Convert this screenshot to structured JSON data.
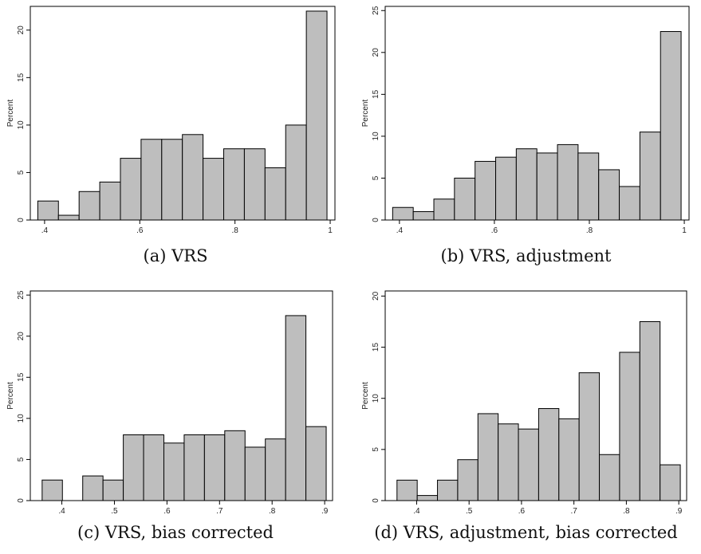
{
  "chart_data": [
    {
      "type": "bar",
      "title": "",
      "ylabel": "Percent",
      "caption": "(a) VRS",
      "xlim": [
        0.37,
        1.01
      ],
      "ylim": [
        0,
        22.5
      ],
      "xticks": [
        0.4,
        0.6,
        0.8,
        1
      ],
      "xtick_labels": [
        ".4",
        ".6",
        ".8",
        "1"
      ],
      "yticks": [
        0,
        5,
        10,
        15,
        20
      ],
      "bin_width": 0.0434,
      "bins": [
        0.3857,
        0.4291,
        0.4725,
        0.5159,
        0.5593,
        0.6027,
        0.6461,
        0.6895,
        0.7329,
        0.7763,
        0.8197,
        0.8631,
        0.9065,
        0.9499
      ],
      "values": [
        2,
        0.5,
        3,
        4,
        6.5,
        8.5,
        8.5,
        9,
        6.5,
        7.5,
        7.5,
        5.5,
        10,
        22
      ]
    },
    {
      "type": "bar",
      "title": "",
      "ylabel": "Percent",
      "caption": "(b) VRS, adjustment",
      "xlim": [
        0.37,
        1.01
      ],
      "ylim": [
        0,
        25.5
      ],
      "xticks": [
        0.4,
        0.6,
        0.8,
        1
      ],
      "xtick_labels": [
        ".4",
        ".6",
        ".8",
        "1"
      ],
      "yticks": [
        0,
        5,
        10,
        15,
        20,
        25
      ],
      "bin_width": 0.0434,
      "bins": [
        0.3857,
        0.4291,
        0.4725,
        0.5159,
        0.5593,
        0.6027,
        0.6461,
        0.6895,
        0.7329,
        0.7763,
        0.8197,
        0.8631,
        0.9065,
        0.9499
      ],
      "values": [
        1.5,
        1,
        2.5,
        5,
        7,
        7.5,
        8.5,
        8,
        9,
        8,
        6,
        4,
        10.5,
        22.5
      ]
    },
    {
      "type": "bar",
      "title": "",
      "ylabel": "Percent",
      "caption": "(c) VRS, bias corrected",
      "xlim": [
        0.34,
        0.915
      ],
      "ylim": [
        0,
        25.5
      ],
      "xticks": [
        0.4,
        0.5,
        0.6,
        0.7,
        0.8,
        0.9
      ],
      "xtick_labels": [
        ".4",
        ".5",
        ".6",
        ".7",
        ".8",
        ".9"
      ],
      "yticks": [
        0,
        5,
        10,
        15,
        20,
        25
      ],
      "bin_width": 0.0386,
      "bins": [
        0.3625,
        0.4011,
        0.4397,
        0.4783,
        0.5169,
        0.5555,
        0.5941,
        0.6327,
        0.6713,
        0.7099,
        0.7485,
        0.7871,
        0.8257,
        0.8643
      ],
      "values": [
        2.5,
        0,
        3,
        2.5,
        8,
        8,
        7,
        8,
        8,
        8.5,
        6.5,
        7.5,
        22.5,
        9
      ]
    },
    {
      "type": "bar",
      "title": "",
      "ylabel": "Percent",
      "caption": "(d) VRS, adjustment, bias corrected",
      "xlim": [
        0.34,
        0.915
      ],
      "ylim": [
        0,
        20.5
      ],
      "xticks": [
        0.4,
        0.5,
        0.6,
        0.7,
        0.8,
        0.9
      ],
      "xtick_labels": [
        ".4",
        ".5",
        ".6",
        ".7",
        ".8",
        ".9"
      ],
      "yticks": [
        0,
        5,
        10,
        15,
        20
      ],
      "bin_width": 0.0386,
      "bins": [
        0.3625,
        0.4011,
        0.4397,
        0.4783,
        0.5169,
        0.5555,
        0.5941,
        0.6327,
        0.6713,
        0.7099,
        0.7485,
        0.7871,
        0.8257,
        0.8643
      ],
      "values": [
        2,
        0.5,
        2,
        4,
        8.5,
        7.5,
        7,
        9,
        8,
        12.5,
        4.5,
        14.5,
        17.5,
        3.5
      ]
    }
  ]
}
